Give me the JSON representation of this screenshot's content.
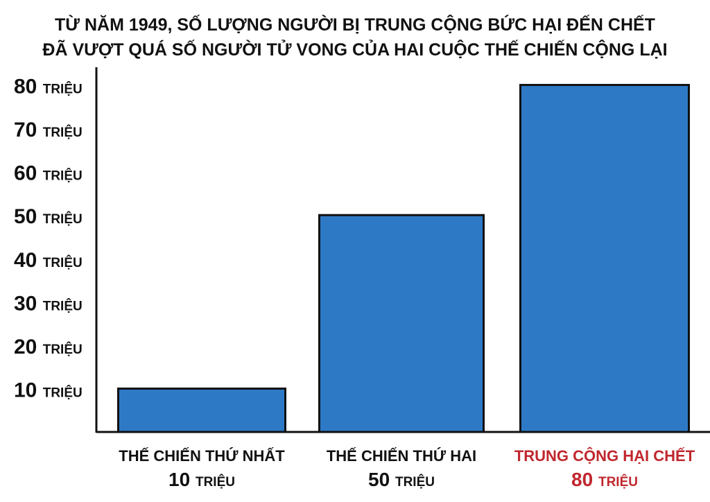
{
  "chart_data": {
    "type": "bar",
    "title_lines": [
      "TỪ NĂM 1949, SỐ LƯỢNG NGƯỜI BỊ TRUNG CỘNG BỨC HẠI ĐẾN CHẾT",
      "ĐÃ VƯỢT QUÁ SỐ NGƯỜI TỬ VONG CỦA HAI CUỘC THẾ CHIẾN CỘNG LẠI"
    ],
    "unit_label": "TRIỆU",
    "y_ticks": [
      10,
      20,
      30,
      40,
      50,
      60,
      70,
      80
    ],
    "ylim": [
      0,
      86
    ],
    "categories": [
      "THẾ CHIẾN THỨ NHẤT",
      "THẾ CHIẾN THỨ HAI",
      "TRUNG CỘNG HẠI CHẾT"
    ],
    "values": [
      10,
      50,
      80
    ],
    "value_labels": [
      "10",
      "50",
      "80"
    ],
    "category_colors": [
      "#111111",
      "#111111",
      "#c0272d"
    ],
    "bar_color": "#2e79c6",
    "bar_stroke": "#111111",
    "grid": false,
    "legend": "none"
  }
}
